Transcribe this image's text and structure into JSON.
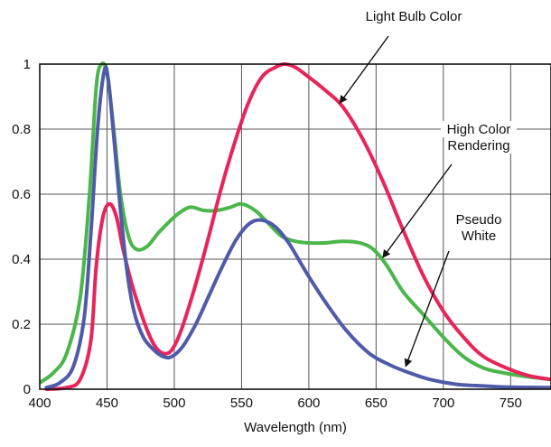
{
  "chart_data": {
    "type": "line",
    "title": "",
    "xlabel": "Wavelength (nm)",
    "ylabel": "",
    "xlim": [
      400,
      780
    ],
    "ylim": [
      0,
      1
    ],
    "grid": true,
    "x_ticks": [
      400,
      450,
      500,
      550,
      600,
      650,
      700,
      750
    ],
    "y_ticks": [
      0,
      0.2,
      0.4,
      0.6,
      0.8,
      1
    ],
    "y_tick_labels": [
      "0",
      "0.2",
      "0.4",
      "0.6",
      "0.8",
      "1"
    ],
    "series": [
      {
        "name": "Light Bulb Color",
        "color": "#e8245a",
        "points": [
          [
            405,
            0
          ],
          [
            420,
            0.005
          ],
          [
            430,
            0.03
          ],
          [
            438,
            0.15
          ],
          [
            442,
            0.38
          ],
          [
            447,
            0.53
          ],
          [
            452,
            0.57
          ],
          [
            457,
            0.53
          ],
          [
            462,
            0.43
          ],
          [
            468,
            0.33
          ],
          [
            474,
            0.25
          ],
          [
            480,
            0.18
          ],
          [
            486,
            0.13
          ],
          [
            492,
            0.11
          ],
          [
            498,
            0.12
          ],
          [
            505,
            0.18
          ],
          [
            515,
            0.31
          ],
          [
            525,
            0.46
          ],
          [
            535,
            0.62
          ],
          [
            545,
            0.76
          ],
          [
            555,
            0.88
          ],
          [
            565,
            0.96
          ],
          [
            575,
            0.99
          ],
          [
            582,
            1.0
          ],
          [
            590,
            0.99
          ],
          [
            600,
            0.96
          ],
          [
            612,
            0.92
          ],
          [
            625,
            0.87
          ],
          [
            640,
            0.77
          ],
          [
            655,
            0.64
          ],
          [
            670,
            0.49
          ],
          [
            685,
            0.35
          ],
          [
            700,
            0.24
          ],
          [
            715,
            0.16
          ],
          [
            730,
            0.1
          ],
          [
            750,
            0.06
          ],
          [
            765,
            0.04
          ],
          [
            780,
            0.03
          ]
        ]
      },
      {
        "name": "High Color Rendering",
        "color": "#4ab64b",
        "points": [
          [
            400,
            0.02
          ],
          [
            410,
            0.05
          ],
          [
            420,
            0.11
          ],
          [
            430,
            0.28
          ],
          [
            437,
            0.6
          ],
          [
            442,
            0.93
          ],
          [
            446,
            1.0
          ],
          [
            450,
            0.97
          ],
          [
            455,
            0.8
          ],
          [
            460,
            0.6
          ],
          [
            466,
            0.47
          ],
          [
            472,
            0.43
          ],
          [
            480,
            0.44
          ],
          [
            488,
            0.48
          ],
          [
            495,
            0.51
          ],
          [
            503,
            0.54
          ],
          [
            512,
            0.56
          ],
          [
            522,
            0.55
          ],
          [
            532,
            0.55
          ],
          [
            542,
            0.56
          ],
          [
            550,
            0.57
          ],
          [
            560,
            0.55
          ],
          [
            570,
            0.51
          ],
          [
            580,
            0.47
          ],
          [
            590,
            0.455
          ],
          [
            600,
            0.45
          ],
          [
            612,
            0.45
          ],
          [
            625,
            0.455
          ],
          [
            638,
            0.45
          ],
          [
            648,
            0.43
          ],
          [
            658,
            0.38
          ],
          [
            670,
            0.3
          ],
          [
            685,
            0.23
          ],
          [
            700,
            0.16
          ],
          [
            715,
            0.1
          ],
          [
            730,
            0.065
          ],
          [
            745,
            0.05
          ],
          [
            760,
            0.04
          ],
          [
            780,
            0.03
          ]
        ]
      },
      {
        "name": "Pseudo White",
        "color": "#4f5aa8",
        "points": [
          [
            405,
            0.005
          ],
          [
            415,
            0.02
          ],
          [
            425,
            0.07
          ],
          [
            433,
            0.22
          ],
          [
            438,
            0.48
          ],
          [
            443,
            0.8
          ],
          [
            448,
            0.98
          ],
          [
            451,
            0.95
          ],
          [
            455,
            0.78
          ],
          [
            460,
            0.55
          ],
          [
            465,
            0.36
          ],
          [
            470,
            0.24
          ],
          [
            477,
            0.16
          ],
          [
            485,
            0.12
          ],
          [
            492,
            0.1
          ],
          [
            498,
            0.1
          ],
          [
            506,
            0.13
          ],
          [
            516,
            0.2
          ],
          [
            526,
            0.29
          ],
          [
            536,
            0.38
          ],
          [
            546,
            0.46
          ],
          [
            556,
            0.51
          ],
          [
            565,
            0.52
          ],
          [
            575,
            0.5
          ],
          [
            585,
            0.45
          ],
          [
            598,
            0.36
          ],
          [
            612,
            0.27
          ],
          [
            628,
            0.18
          ],
          [
            645,
            0.11
          ],
          [
            660,
            0.075
          ],
          [
            675,
            0.05
          ],
          [
            690,
            0.03
          ],
          [
            710,
            0.015
          ],
          [
            730,
            0.01
          ],
          [
            750,
            0.006
          ],
          [
            780,
            0.005
          ]
        ]
      }
    ],
    "annotations": [
      {
        "lines": [
          "Light Bulb Color"
        ],
        "series": "Light Bulb Color",
        "point": [
          623,
          0.88
        ]
      },
      {
        "lines": [
          "High Color",
          "Rendering"
        ],
        "series": "High Color Rendering",
        "point": [
          655,
          0.405
        ]
      },
      {
        "lines": [
          "Pseudo",
          "White"
        ],
        "series": "Pseudo White",
        "point": [
          672,
          0.07
        ]
      }
    ]
  }
}
